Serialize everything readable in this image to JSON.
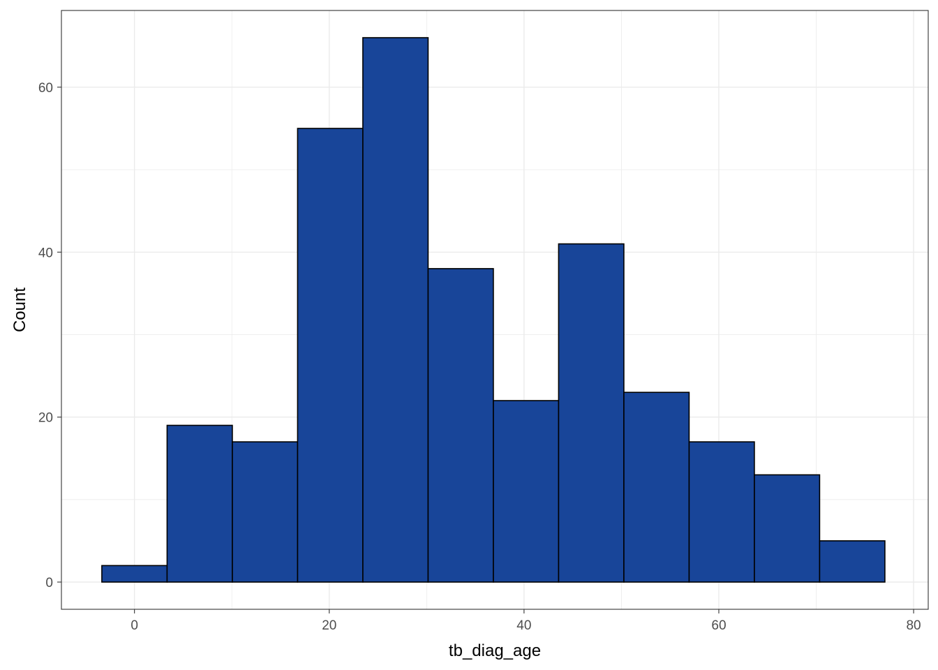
{
  "chart_data": {
    "type": "bar",
    "subtype": "histogram",
    "xlabel": "tb_diag_age",
    "ylabel": "Count",
    "xlim": [
      -7.5,
      81.5
    ],
    "ylim": [
      -3.3,
      69.3
    ],
    "x_ticks": [
      0,
      20,
      40,
      60,
      80
    ],
    "x_tick_labels": [
      "0",
      "20",
      "40",
      "60",
      "80"
    ],
    "x_minor_ticks": [
      10,
      30,
      50,
      70
    ],
    "y_ticks": [
      0,
      20,
      40,
      60
    ],
    "y_tick_labels": [
      "0",
      "20",
      "40",
      "60"
    ],
    "y_minor_ticks": [
      10,
      30,
      50
    ],
    "grid": true,
    "bins": [
      {
        "x0": -3.35,
        "x1": 3.35,
        "count": 2
      },
      {
        "x0": 3.35,
        "x1": 10.05,
        "count": 19
      },
      {
        "x0": 10.05,
        "x1": 16.75,
        "count": 17
      },
      {
        "x0": 16.75,
        "x1": 23.45,
        "count": 55
      },
      {
        "x0": 23.45,
        "x1": 30.15,
        "count": 66
      },
      {
        "x0": 30.15,
        "x1": 36.85,
        "count": 38
      },
      {
        "x0": 36.85,
        "x1": 43.55,
        "count": 22
      },
      {
        "x0": 43.55,
        "x1": 50.25,
        "count": 41
      },
      {
        "x0": 50.25,
        "x1": 56.95,
        "count": 23
      },
      {
        "x0": 56.95,
        "x1": 63.65,
        "count": 17
      },
      {
        "x0": 63.65,
        "x1": 70.35,
        "count": 13
      },
      {
        "x0": 70.35,
        "x1": 77.05,
        "count": 5
      }
    ],
    "bar_fill": "#184599",
    "bar_stroke": "#000000",
    "grid_color": "#ebebeb",
    "panel_border": "#333333"
  }
}
